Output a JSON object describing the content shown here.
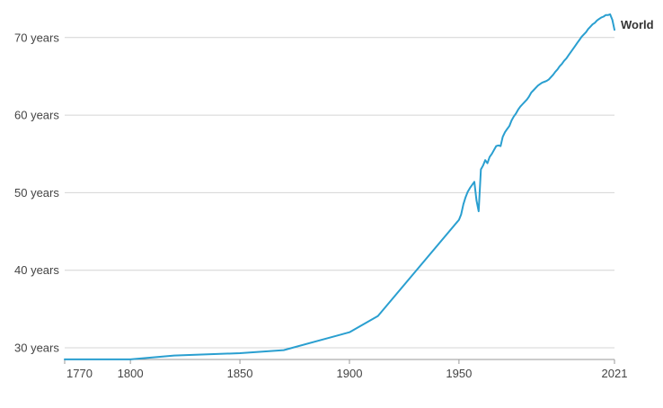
{
  "chart_data": {
    "type": "line",
    "title": "",
    "xlabel": "",
    "ylabel": "",
    "xlim": [
      1770,
      2021
    ],
    "ylim": [
      28,
      73
    ],
    "grid": true,
    "y_ticks": [
      {
        "value": 30,
        "label": "30 years"
      },
      {
        "value": 40,
        "label": "40 years"
      },
      {
        "value": 50,
        "label": "50 years"
      },
      {
        "value": 60,
        "label": "60 years"
      },
      {
        "value": 70,
        "label": "70 years"
      }
    ],
    "x_ticks": [
      {
        "value": 1770,
        "label": "1770"
      },
      {
        "value": 1800,
        "label": "1800"
      },
      {
        "value": 1850,
        "label": "1850"
      },
      {
        "value": 1900,
        "label": "1900"
      },
      {
        "value": 1950,
        "label": "1950"
      },
      {
        "value": 2021,
        "label": "2021"
      }
    ],
    "series": [
      {
        "name": "World",
        "color": "#2a9fd0",
        "x": [
          1770,
          1800,
          1820,
          1850,
          1870,
          1900,
          1913,
          1950,
          1951,
          1952,
          1953,
          1954,
          1955,
          1956,
          1957,
          1958,
          1959,
          1960,
          1961,
          1962,
          1963,
          1964,
          1965,
          1966,
          1967,
          1968,
          1969,
          1970,
          1971,
          1972,
          1973,
          1974,
          1975,
          1976,
          1977,
          1978,
          1979,
          1980,
          1981,
          1982,
          1983,
          1984,
          1985,
          1986,
          1987,
          1988,
          1989,
          1990,
          1991,
          1992,
          1993,
          1994,
          1995,
          1996,
          1997,
          1998,
          1999,
          2000,
          2001,
          2002,
          2003,
          2004,
          2005,
          2006,
          2007,
          2008,
          2009,
          2010,
          2011,
          2012,
          2013,
          2014,
          2015,
          2016,
          2017,
          2018,
          2019,
          2020,
          2021
        ],
        "values": [
          28.5,
          28.5,
          29.0,
          29.3,
          29.7,
          32.0,
          34.1,
          46.5,
          47.2,
          48.5,
          49.4,
          50.1,
          50.6,
          51.0,
          51.4,
          49.0,
          47.6,
          53.0,
          53.5,
          54.2,
          53.8,
          54.6,
          55.0,
          55.5,
          56.0,
          56.1,
          56.0,
          57.2,
          57.8,
          58.2,
          58.6,
          59.3,
          59.8,
          60.2,
          60.7,
          61.1,
          61.4,
          61.7,
          62.0,
          62.4,
          62.9,
          63.2,
          63.5,
          63.8,
          64.0,
          64.2,
          64.3,
          64.4,
          64.6,
          64.9,
          65.2,
          65.6,
          65.9,
          66.3,
          66.6,
          67.0,
          67.3,
          67.7,
          68.1,
          68.5,
          68.9,
          69.3,
          69.7,
          70.1,
          70.4,
          70.7,
          71.1,
          71.4,
          71.7,
          71.9,
          72.2,
          72.4,
          72.6,
          72.7,
          72.9,
          72.9,
          73.0,
          72.3,
          71.0
        ]
      }
    ]
  }
}
